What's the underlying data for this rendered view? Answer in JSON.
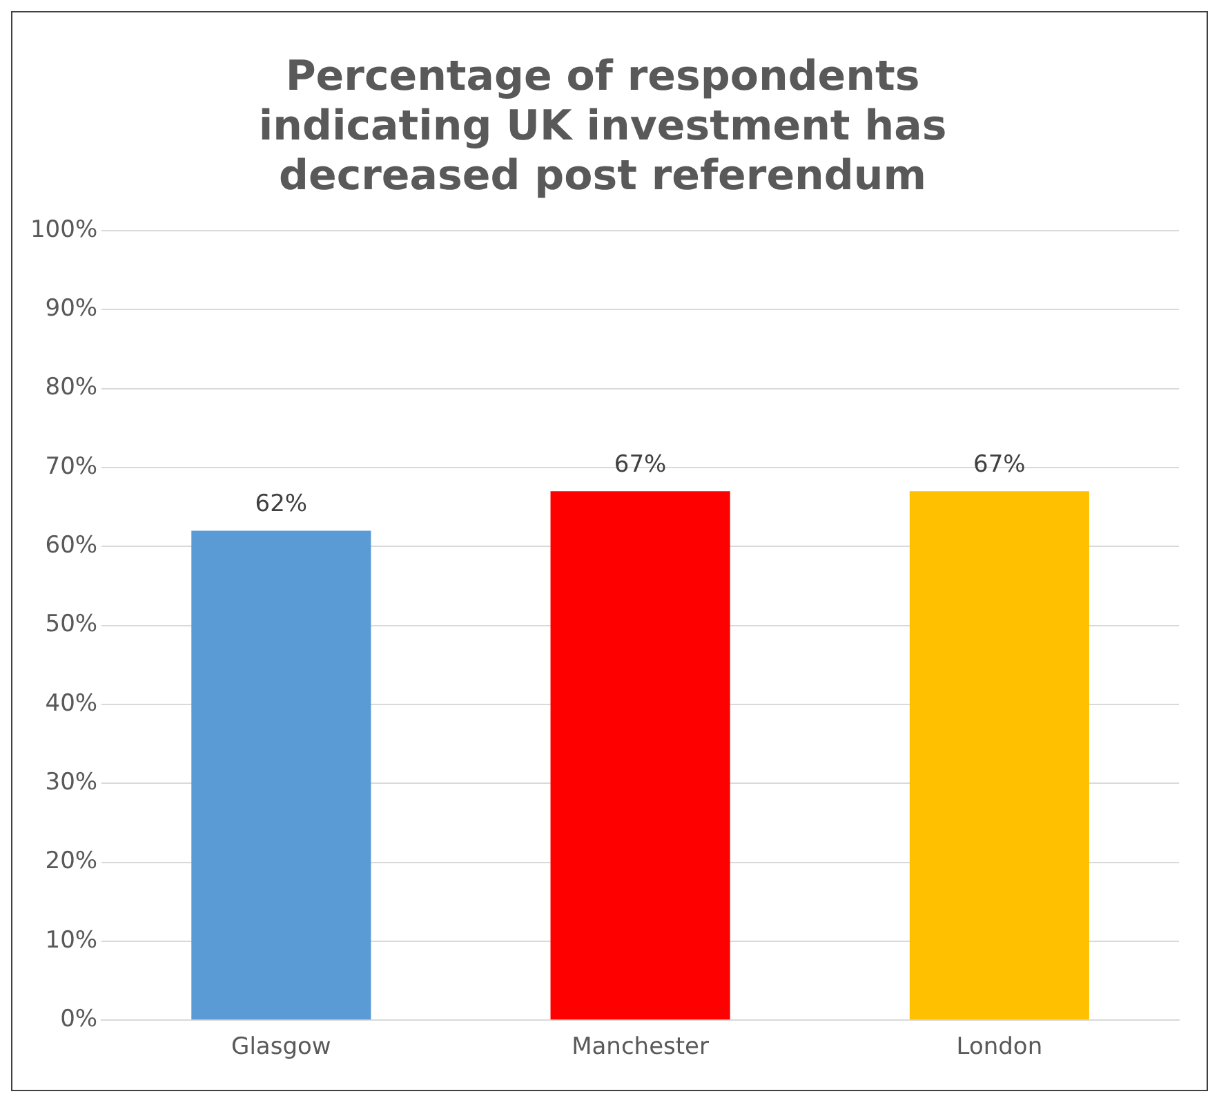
{
  "chart_data": {
    "type": "bar",
    "title": "Percentage of respondents indicating UK investment has decreased post referendum",
    "categories": [
      "Glasgow",
      "Manchester",
      "London"
    ],
    "values": [
      62,
      67,
      67
    ],
    "colors": [
      "#5b9bd5",
      "#ff0000",
      "#ffc000"
    ],
    "value_labels": [
      "62%",
      "67%",
      "67%"
    ],
    "ylim": [
      0,
      100
    ],
    "yticks": [
      {
        "value": 0,
        "label": "0%"
      },
      {
        "value": 10,
        "label": "10%"
      },
      {
        "value": 20,
        "label": "20%"
      },
      {
        "value": 30,
        "label": "30%"
      },
      {
        "value": 40,
        "label": "40%"
      },
      {
        "value": 50,
        "label": "50%"
      },
      {
        "value": 60,
        "label": "60%"
      },
      {
        "value": 70,
        "label": "70%"
      },
      {
        "value": 80,
        "label": "80%"
      },
      {
        "value": 90,
        "label": "90%"
      },
      {
        "value": 100,
        "label": "100%"
      }
    ],
    "grid": "y",
    "legend": false
  }
}
